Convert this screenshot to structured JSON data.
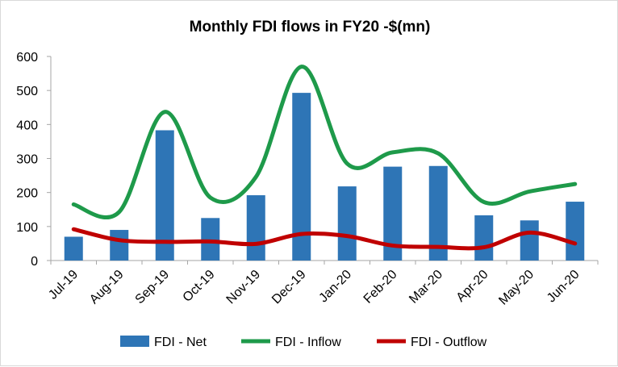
{
  "chart_data": {
    "type": "bar",
    "title": "Monthly FDI flows in FY20 -$(mn)",
    "categories": [
      "Jul-19",
      "Aug-19",
      "Sep-19",
      "Oct-19",
      "Nov-19",
      "Dec-19",
      "Jan-20",
      "Feb-20",
      "Mar-20",
      "Apr-20",
      "May-20",
      "Jun-20"
    ],
    "series": [
      {
        "name": "FDI - Net",
        "type": "bar",
        "color": "#2e75b6",
        "values": [
          70,
          90,
          383,
          125,
          192,
          493,
          218,
          276,
          278,
          133,
          118,
          173
        ]
      },
      {
        "name": "FDI - Inflow",
        "type": "line",
        "color": "#1e9a4a",
        "values": [
          165,
          143,
          437,
          185,
          246,
          570,
          285,
          318,
          315,
          172,
          203,
          225
        ]
      },
      {
        "name": "FDI - Outflow",
        "type": "line",
        "color": "#c00000",
        "values": [
          92,
          60,
          55,
          56,
          49,
          78,
          72,
          44,
          40,
          39,
          82,
          50
        ]
      }
    ],
    "ylim": [
      0,
      600
    ],
    "yticks": [
      0,
      100,
      200,
      300,
      400,
      500,
      600
    ],
    "xlabel": "",
    "ylabel": "",
    "grid": false,
    "legend": "bottom"
  }
}
